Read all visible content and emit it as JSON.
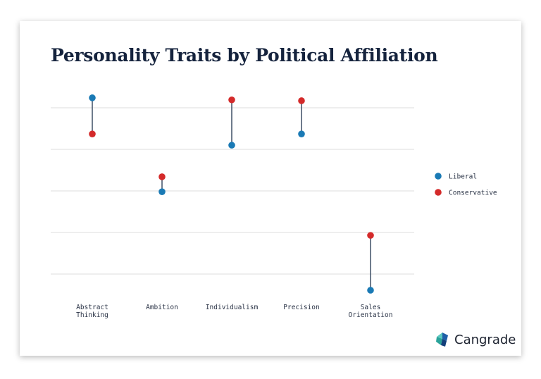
{
  "chart_data": {
    "type": "dumbbell",
    "title": "Personality Traits by Political Affiliation",
    "xlabel": "",
    "ylabel": "",
    "categories": [
      "Abstract Thinking",
      "Ambition",
      "Individualism",
      "Precision",
      "Sales Orientation"
    ],
    "category_lines": [
      [
        "Abstract",
        "Thinking"
      ],
      [
        "Ambition"
      ],
      [
        "Individualism"
      ],
      [
        "Precision"
      ],
      [
        "Sales",
        "Orientation"
      ]
    ],
    "series": [
      {
        "name": "Liberal",
        "color": "#1a7ab5",
        "values": [
          4.24,
          1.98,
          3.1,
          3.37,
          -0.39
        ]
      },
      {
        "name": "Conservative",
        "color": "#d42a2a",
        "values": [
          3.37,
          2.34,
          4.19,
          4.17,
          0.93
        ]
      }
    ],
    "ylim": [
      -0.6,
      4.5
    ],
    "gridlines": [
      0,
      1,
      2,
      3,
      4
    ],
    "y_tick_labels_shown": false,
    "grid": true,
    "legend_position": "right",
    "connector_color": "#3d4f66"
  },
  "branding": {
    "logo_text": "Cangrade"
  }
}
